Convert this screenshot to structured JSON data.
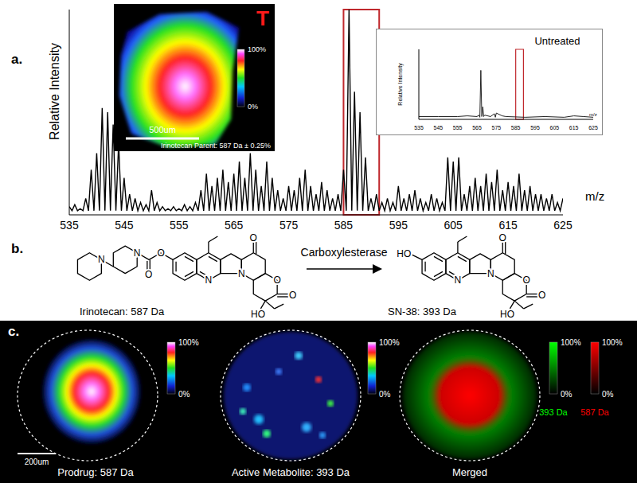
{
  "chart_data": [
    {
      "type": "line",
      "x_label": "m/z",
      "y_label": "Relative Intensity",
      "x": [
        535,
        535.5,
        536,
        536.5,
        537,
        537.5,
        538,
        538.5,
        539,
        539.5,
        540,
        540.5,
        541,
        541.5,
        542,
        542.5,
        543,
        543.5,
        544,
        544.5,
        545,
        545.5,
        546,
        546.5,
        547,
        547.5,
        548,
        548.5,
        549,
        549.5,
        550,
        550.5,
        551,
        551.5,
        552,
        552.5,
        553,
        553.5,
        554,
        554.5,
        555,
        555.5,
        556,
        556.5,
        557,
        557.5,
        558,
        558.5,
        559,
        559.5,
        560,
        560.5,
        561,
        561.5,
        562,
        562.5,
        563,
        563.5,
        564,
        564.5,
        565,
        565.5,
        566,
        566.5,
        567,
        567.5,
        568,
        568.5,
        569,
        569.5,
        570,
        570.5,
        571,
        571.5,
        572,
        572.5,
        573,
        573.5,
        574,
        574.5,
        575,
        575.5,
        576,
        576.5,
        577,
        577.5,
        578,
        578.5,
        579,
        579.5,
        580,
        580.5,
        581,
        581.5,
        582,
        582.5,
        583,
        583.5,
        584,
        584.5,
        585,
        585.5,
        586,
        586.5,
        587,
        587.5,
        588,
        588.5,
        589,
        589.5,
        590,
        590.5,
        591,
        591.5,
        592,
        592.5,
        593,
        593.5,
        594,
        594.5,
        595,
        595.5,
        596,
        596.5,
        597,
        597.5,
        598,
        598.5,
        599,
        599.5,
        600,
        600.5,
        601,
        601.5,
        602,
        602.5,
        603,
        603.5,
        604,
        604.5,
        605,
        605.5,
        606,
        606.5,
        607,
        607.5,
        608,
        608.5,
        609,
        609.5,
        610,
        610.5,
        611,
        611.5,
        612,
        612.5,
        613,
        613.5,
        614,
        614.5,
        615,
        615.5,
        616,
        616.5,
        617,
        617.5,
        618,
        618.5,
        619,
        619.5,
        620,
        620.5,
        621,
        621.5,
        622,
        622.5,
        623,
        623.5,
        624,
        624.5,
        625
      ],
      "values": [
        4,
        2,
        5,
        2,
        3,
        2,
        8,
        2,
        22,
        2,
        30,
        2,
        52,
        2,
        50,
        2,
        44,
        2,
        35,
        2,
        18,
        2,
        10,
        2,
        8,
        2,
        6,
        2,
        5,
        2,
        12,
        2,
        6,
        2,
        4,
        2,
        3,
        2,
        4,
        2,
        3,
        2,
        5,
        2,
        4,
        2,
        6,
        2,
        12,
        2,
        20,
        2,
        14,
        2,
        18,
        2,
        22,
        2,
        16,
        2,
        20,
        2,
        26,
        2,
        18,
        2,
        30,
        2,
        22,
        2,
        14,
        2,
        26,
        2,
        18,
        2,
        12,
        2,
        8,
        2,
        14,
        2,
        12,
        2,
        18,
        2,
        22,
        2,
        14,
        2,
        10,
        2,
        16,
        2,
        12,
        2,
        8,
        2,
        10,
        2,
        22,
        2,
        100,
        2,
        60,
        2,
        50,
        2,
        28,
        2,
        8,
        2,
        10,
        2,
        6,
        2,
        8,
        2,
        6,
        2,
        14,
        2,
        8,
        2,
        10,
        2,
        12,
        2,
        8,
        2,
        6,
        2,
        10,
        2,
        8,
        2,
        6,
        2,
        28,
        2,
        26,
        2,
        28,
        2,
        10,
        2,
        14,
        2,
        18,
        2,
        14,
        2,
        20,
        2,
        16,
        2,
        22,
        2,
        12,
        2,
        16,
        2,
        14,
        2,
        20,
        2,
        12,
        2,
        14,
        2,
        10,
        2,
        10,
        2,
        8,
        2,
        10,
        2,
        6,
        2,
        8
      ],
      "color": "#000000",
      "xlim": [
        535,
        625
      ],
      "xticks": [
        535,
        545,
        555,
        565,
        575,
        585,
        595,
        605,
        615,
        625
      ],
      "ylim": [
        0,
        100
      ],
      "tick_labels": "x",
      "grid": false,
      "highlight": {
        "range": [
          585,
          591.5
        ],
        "color": "#c0282d"
      }
    },
    {
      "type": "line",
      "title": "Untreated",
      "x_label": "m/z",
      "y_label": "Relative Intensity",
      "x": [
        535,
        545,
        555,
        560,
        565,
        566,
        566.5,
        567,
        567.5,
        568,
        568.5,
        569,
        572,
        574,
        574.5,
        575,
        578,
        580,
        590,
        600,
        610,
        615,
        620,
        625
      ],
      "values": [
        4,
        4,
        4,
        5,
        4,
        6,
        3,
        70,
        4,
        18,
        4,
        6,
        4,
        8,
        3,
        9,
        5,
        4,
        3,
        4,
        3,
        5,
        4,
        3
      ],
      "color": "#222222",
      "xlim": [
        535,
        625
      ],
      "xticks": [
        535,
        545,
        555,
        565,
        575,
        585,
        595,
        605,
        615,
        625
      ],
      "ylim": [
        0,
        100
      ],
      "tick_labels": "x",
      "grid": false,
      "highlight": {
        "range": [
          585,
          589
        ],
        "color": "#c0282d"
      }
    }
  ],
  "panel_a": {
    "label": "a.",
    "inset_image": {
      "label": "T",
      "caption": "Irinotecan Parent: 587 Da ± 0.25%",
      "scale_bar": "500um",
      "colorbar": {
        "range": [
          0,
          100
        ],
        "ticks": [
          {
            "value": 100,
            "label": "100%"
          },
          {
            "value": 0,
            "label": "0%"
          }
        ]
      }
    }
  },
  "panel_b": {
    "label": "b.",
    "enzyme": "Carboxylesterase",
    "reactant": {
      "name": "Irinotecan: 587 Da",
      "core_atoms": [
        "N",
        "N",
        "O",
        "O",
        "O",
        "HO"
      ],
      "side_atoms": [
        "O",
        "O",
        "N",
        "N"
      ]
    },
    "product": {
      "name": "SN-38: 393 Da",
      "core_atoms": [
        "N",
        "N",
        "O",
        "O",
        "O",
        "HO"
      ],
      "side_atoms": [
        "HO"
      ]
    }
  },
  "panel_c": {
    "label": "c.",
    "scale_bar": "200um",
    "images": [
      {
        "caption": "Prodrug: 587 Da",
        "colorbar": {
          "range": [
            0,
            100
          ],
          "ticks": [
            {
              "value": 100,
              "label": "100%"
            },
            {
              "value": 0,
              "label": "0%"
            }
          ]
        }
      },
      {
        "caption": "Active Metabolite: 393 Da",
        "colorbar": {
          "range": [
            0,
            100
          ],
          "ticks": [
            {
              "value": 100,
              "label": "100%"
            },
            {
              "value": 0,
              "label": "0%"
            }
          ]
        }
      },
      {
        "caption": "Merged",
        "colorbars": [
          {
            "name": "393 Da",
            "color": "#00ff00",
            "range": [
              0,
              100
            ],
            "ticks": [
              {
                "value": 100,
                "label": "100%"
              },
              {
                "value": 0,
                "label": "0%"
              }
            ]
          },
          {
            "name": "587 Da",
            "color": "#ff0000",
            "range": [
              0,
              100
            ],
            "ticks": [
              {
                "value": 100,
                "label": "100%"
              },
              {
                "value": 0,
                "label": "0%"
              }
            ]
          }
        ]
      }
    ]
  }
}
